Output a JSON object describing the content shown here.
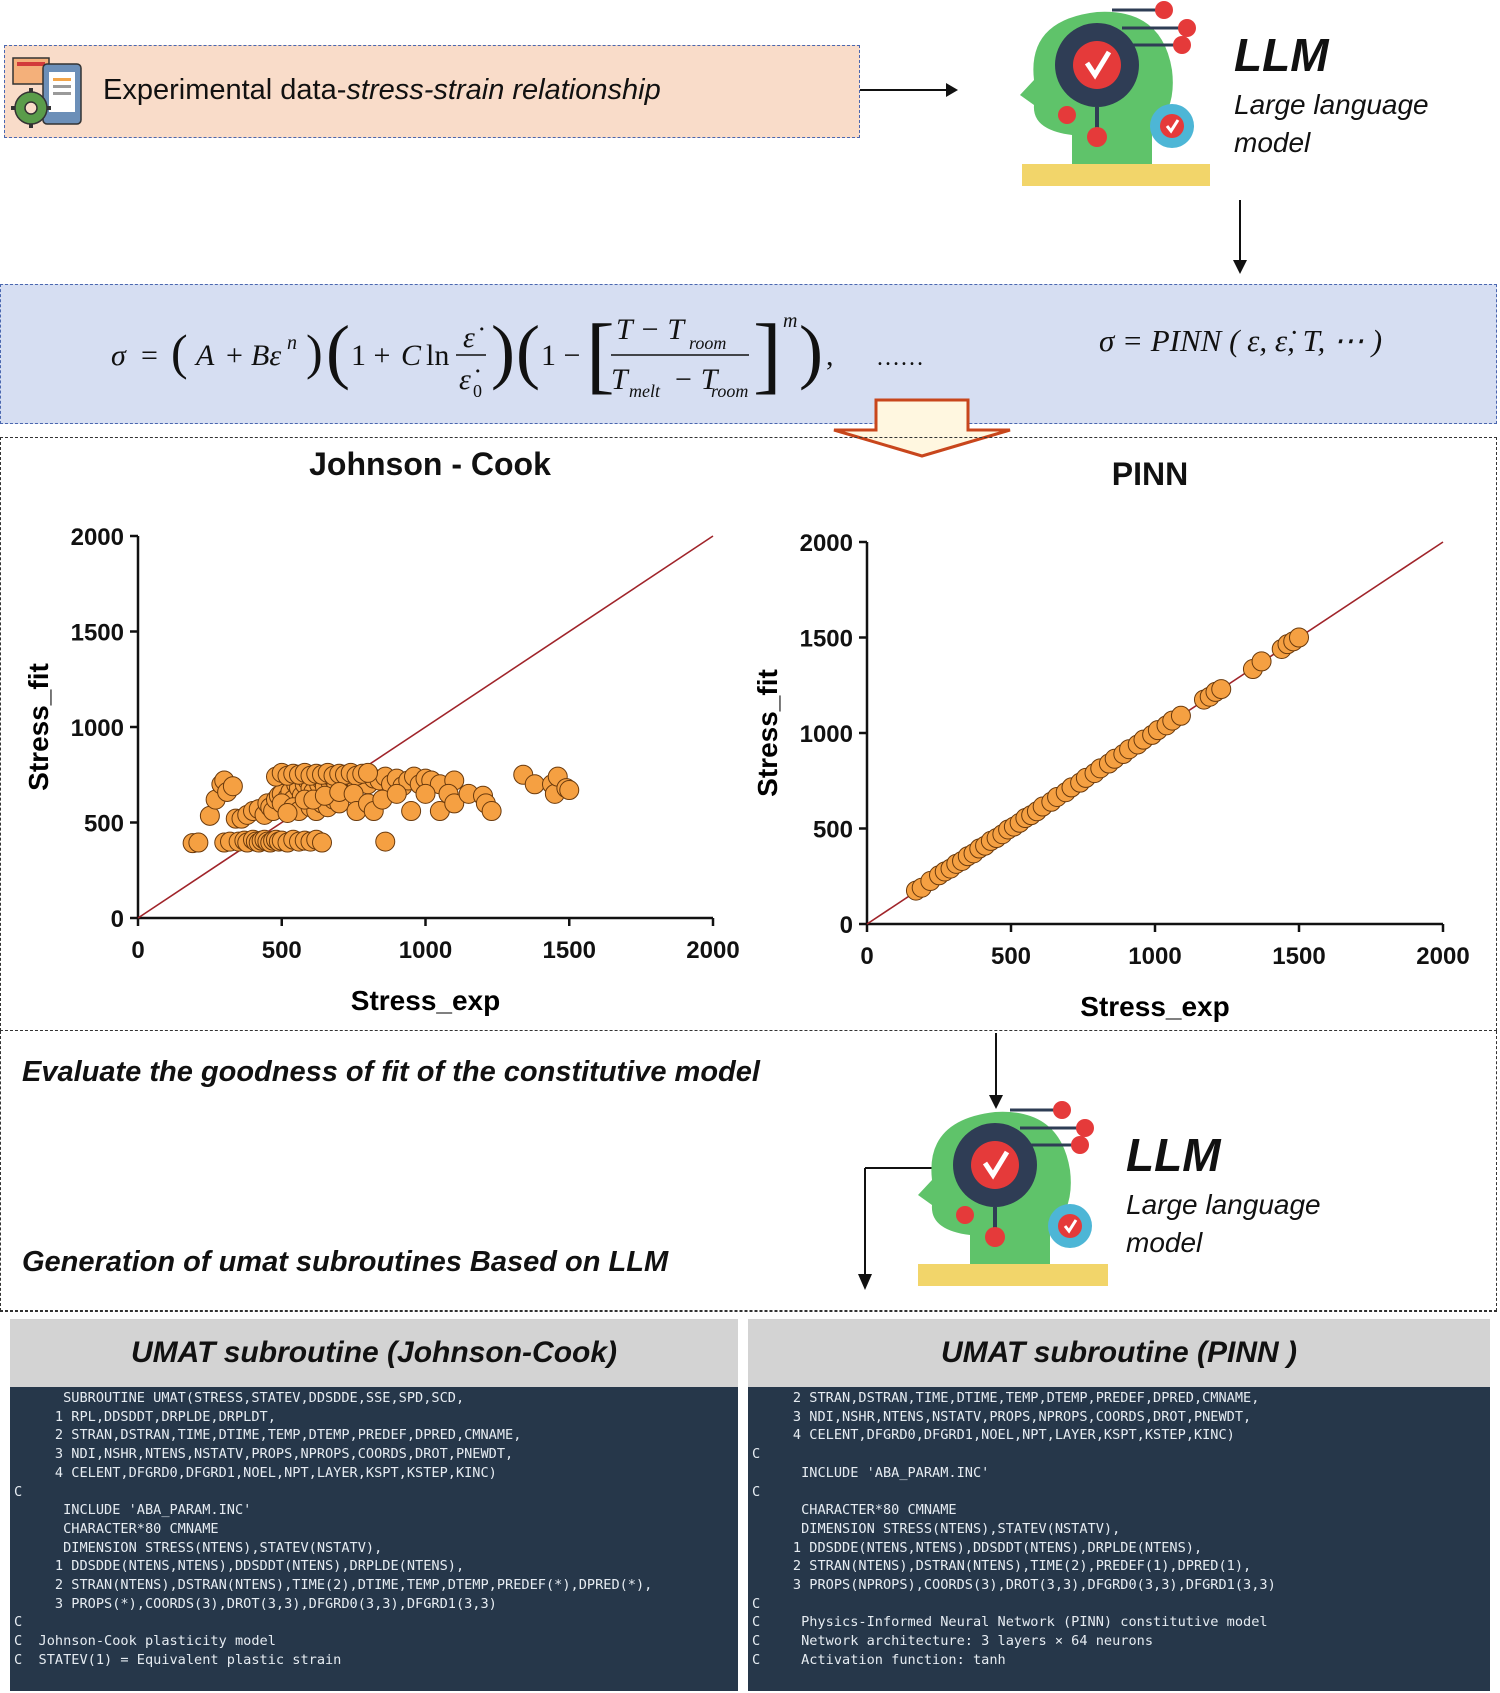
{
  "input": {
    "label_plain": "Experimental data-",
    "label_italic": "stress-strain relationship"
  },
  "llm_top": {
    "title": "LLM",
    "subtitle_line1": "Large language",
    "subtitle_line2": "model"
  },
  "llm_mid": {
    "title": "LLM",
    "subtitle_line1": "Large language",
    "subtitle_line2": "model"
  },
  "equations": {
    "jc_dots": "……",
    "pinn": "σ = PINN ( ε,  ε̇,  T,  ⋯ )"
  },
  "steps": {
    "evaluate": "Evaluate the goodness of fit of the constitutive model",
    "generate": "Generation  of umat subroutines Based on LLM"
  },
  "chart_data": [
    {
      "type": "scatter",
      "title": "Johnson - Cook",
      "xlabel": "Stress_exp",
      "ylabel": "Stress_fit",
      "xlim": [
        0,
        2000
      ],
      "ylim": [
        0,
        2000
      ],
      "xticks": [
        "0",
        "500",
        "1000",
        "1500",
        "2000"
      ],
      "yticks": [
        "0",
        "500",
        "1000",
        "1500",
        "2000"
      ],
      "reference_line": "y = x",
      "points": [
        [
          190,
          392
        ],
        [
          210,
          395
        ],
        [
          250,
          535
        ],
        [
          270,
          620
        ],
        [
          290,
          700
        ],
        [
          300,
          720
        ],
        [
          310,
          660
        ],
        [
          330,
          690
        ],
        [
          340,
          520
        ],
        [
          300,
          395
        ],
        [
          320,
          400
        ],
        [
          350,
          400
        ],
        [
          370,
          405
        ],
        [
          380,
          395
        ],
        [
          400,
          410
        ],
        [
          410,
          400
        ],
        [
          420,
          395
        ],
        [
          430,
          405
        ],
        [
          440,
          410
        ],
        [
          450,
          400
        ],
        [
          460,
          395
        ],
        [
          470,
          405
        ],
        [
          480,
          410
        ],
        [
          490,
          400
        ],
        [
          500,
          405
        ],
        [
          520,
          395
        ],
        [
          540,
          410
        ],
        [
          560,
          400
        ],
        [
          580,
          405
        ],
        [
          600,
          400
        ],
        [
          620,
          410
        ],
        [
          640,
          395
        ],
        [
          360,
          520
        ],
        [
          380,
          540
        ],
        [
          400,
          560
        ],
        [
          420,
          570
        ],
        [
          440,
          540
        ],
        [
          450,
          600
        ],
        [
          460,
          580
        ],
        [
          470,
          560
        ],
        [
          480,
          620
        ],
        [
          490,
          640
        ],
        [
          500,
          650
        ],
        [
          510,
          600
        ],
        [
          520,
          630
        ],
        [
          530,
          660
        ],
        [
          540,
          620
        ],
        [
          550,
          700
        ],
        [
          560,
          680
        ],
        [
          570,
          640
        ],
        [
          580,
          700
        ],
        [
          590,
          720
        ],
        [
          600,
          680
        ],
        [
          610,
          660
        ],
        [
          620,
          730
        ],
        [
          630,
          700
        ],
        [
          640,
          720
        ],
        [
          650,
          690
        ],
        [
          660,
          740
        ],
        [
          670,
          710
        ],
        [
          680,
          730
        ],
        [
          690,
          700
        ],
        [
          700,
          740
        ],
        [
          710,
          720
        ],
        [
          720,
          690
        ],
        [
          730,
          740
        ],
        [
          740,
          700
        ],
        [
          750,
          730
        ],
        [
          760,
          710
        ],
        [
          780,
          740
        ],
        [
          800,
          700
        ],
        [
          820,
          730
        ],
        [
          840,
          720
        ],
        [
          860,
          740
        ],
        [
          880,
          700
        ],
        [
          900,
          730
        ],
        [
          920,
          690
        ],
        [
          940,
          720
        ],
        [
          960,
          740
        ],
        [
          980,
          700
        ],
        [
          1000,
          730
        ],
        [
          1020,
          720
        ],
        [
          1050,
          700
        ],
        [
          1100,
          720
        ],
        [
          480,
          740
        ],
        [
          500,
          760
        ],
        [
          520,
          745
        ],
        [
          540,
          755
        ],
        [
          560,
          750
        ],
        [
          580,
          760
        ],
        [
          600,
          745
        ],
        [
          620,
          755
        ],
        [
          640,
          750
        ],
        [
          660,
          760
        ],
        [
          680,
          745
        ],
        [
          700,
          755
        ],
        [
          720,
          750
        ],
        [
          740,
          760
        ],
        [
          760,
          745
        ],
        [
          780,
          755
        ],
        [
          800,
          760
        ],
        [
          500,
          600
        ],
        [
          540,
          580
        ],
        [
          560,
          560
        ],
        [
          600,
          580
        ],
        [
          620,
          560
        ],
        [
          640,
          600
        ],
        [
          660,
          580
        ],
        [
          680,
          620
        ],
        [
          700,
          600
        ],
        [
          520,
          550
        ],
        [
          580,
          620
        ],
        [
          610,
          620
        ],
        [
          650,
          640
        ],
        [
          700,
          660
        ],
        [
          750,
          650
        ],
        [
          760,
          560
        ],
        [
          800,
          600
        ],
        [
          820,
          560
        ],
        [
          850,
          620
        ],
        [
          860,
          400
        ],
        [
          900,
          650
        ],
        [
          950,
          560
        ],
        [
          1000,
          650
        ],
        [
          1050,
          560
        ],
        [
          1080,
          650
        ],
        [
          1100,
          600
        ],
        [
          1150,
          650
        ],
        [
          1200,
          640
        ],
        [
          1210,
          600
        ],
        [
          1230,
          560
        ],
        [
          1340,
          750
        ],
        [
          1380,
          700
        ],
        [
          1440,
          700
        ],
        [
          1450,
          650
        ],
        [
          1460,
          740
        ],
        [
          1490,
          680
        ],
        [
          1500,
          670
        ]
      ]
    },
    {
      "type": "scatter",
      "title": "PINN",
      "xlabel": "Stress_exp",
      "ylabel": "Stress_fit",
      "xlim": [
        0,
        2000
      ],
      "ylim": [
        0,
        2000
      ],
      "xticks": [
        "0",
        "500",
        "1000",
        "1500",
        "2000"
      ],
      "yticks": [
        "0",
        "500",
        "1000",
        "1500",
        "2000"
      ],
      "reference_line": "y = x",
      "points": [
        [
          170,
          175
        ],
        [
          190,
          190
        ],
        [
          220,
          225
        ],
        [
          250,
          255
        ],
        [
          270,
          275
        ],
        [
          290,
          290
        ],
        [
          310,
          315
        ],
        [
          330,
          330
        ],
        [
          350,
          355
        ],
        [
          370,
          370
        ],
        [
          390,
          395
        ],
        [
          410,
          410
        ],
        [
          430,
          435
        ],
        [
          450,
          450
        ],
        [
          470,
          470
        ],
        [
          490,
          495
        ],
        [
          510,
          510
        ],
        [
          530,
          530
        ],
        [
          550,
          555
        ],
        [
          570,
          570
        ],
        [
          590,
          590
        ],
        [
          610,
          615
        ],
        [
          640,
          640
        ],
        [
          660,
          665
        ],
        [
          690,
          690
        ],
        [
          710,
          715
        ],
        [
          740,
          740
        ],
        [
          760,
          765
        ],
        [
          790,
          790
        ],
        [
          810,
          815
        ],
        [
          840,
          840
        ],
        [
          860,
          865
        ],
        [
          890,
          890
        ],
        [
          910,
          915
        ],
        [
          940,
          940
        ],
        [
          960,
          965
        ],
        [
          990,
          990
        ],
        [
          1010,
          1015
        ],
        [
          1040,
          1040
        ],
        [
          1060,
          1065
        ],
        [
          1090,
          1090
        ],
        [
          1170,
          1175
        ],
        [
          1190,
          1190
        ],
        [
          1210,
          1215
        ],
        [
          1230,
          1230
        ],
        [
          1340,
          1335
        ],
        [
          1370,
          1375
        ],
        [
          1440,
          1440
        ],
        [
          1460,
          1465
        ],
        [
          1480,
          1480
        ],
        [
          1500,
          1500
        ]
      ]
    }
  ],
  "umat_jc": {
    "header": "UMAT subroutine  (Johnson-Cook)",
    "code": "      SUBROUTINE UMAT(STRESS,STATEV,DDSDDE,SSE,SPD,SCD,\n     1 RPL,DDSDDT,DRPLDE,DRPLDT,\n     2 STRAN,DSTRAN,TIME,DTIME,TEMP,DTEMP,PREDEF,DPRED,CMNAME,\n     3 NDI,NSHR,NTENS,NSTATV,PROPS,NPROPS,COORDS,DROT,PNEWDT,\n     4 CELENT,DFGRD0,DFGRD1,NOEL,NPT,LAYER,KSPT,KSTEP,KINC)\nC\n      INCLUDE 'ABA_PARAM.INC'\n      CHARACTER*80 CMNAME\n      DIMENSION STRESS(NTENS),STATEV(NSTATV),\n     1 DDSDDE(NTENS,NTENS),DDSDDT(NTENS),DRPLDE(NTENS),\n     2 STRAN(NTENS),DSTRAN(NTENS),TIME(2),DTIME,TEMP,DTEMP,PREDEF(*),DPRED(*),\n     3 PROPS(*),COORDS(3),DROT(3,3),DFGRD0(3,3),DFGRD1(3,3)\nC\nC  Johnson-Cook plasticity model\nC  STATEV(1) = Equivalent plastic strain"
  },
  "umat_pinn": {
    "header": "UMAT subroutine  (PINN )",
    "code": "     2 STRAN,DSTRAN,TIME,DTIME,TEMP,DTEMP,PREDEF,DPRED,CMNAME,\n     3 NDI,NSHR,NTENS,NSTATV,PROPS,NPROPS,COORDS,DROT,PNEWDT,\n     4 CELENT,DFGRD0,DFGRD1,NOEL,NPT,LAYER,KSPT,KSTEP,KINC)\nC\n      INCLUDE 'ABA_PARAM.INC'\nC\n      CHARACTER*80 CMNAME\n      DIMENSION STRESS(NTENS),STATEV(NSTATV),\n     1 DDSDDE(NTENS,NTENS),DDSDDT(NTENS),DRPLDE(NTENS),\n     2 STRAN(NTENS),DSTRAN(NTENS),TIME(2),PREDEF(1),DPRED(1),\n     3 PROPS(NPROPS),COORDS(3),DROT(3,3),DFGRD0(3,3),DFGRD1(3,3)\nC\nC     Physics-Informed Neural Network (PINN) constitutive model\nC     Network architecture: 3 layers × 64 neurons\nC     Activation function: tanh"
  },
  "colors": {
    "input_fill": "#f9dcc9",
    "equation_fill": "#d6def2",
    "dash_border": "#4a67b0",
    "point_fill": "#f5a042",
    "diagonal": "#a0242a",
    "code_bg": "#26374a",
    "code_head": "#d3d3d3"
  }
}
